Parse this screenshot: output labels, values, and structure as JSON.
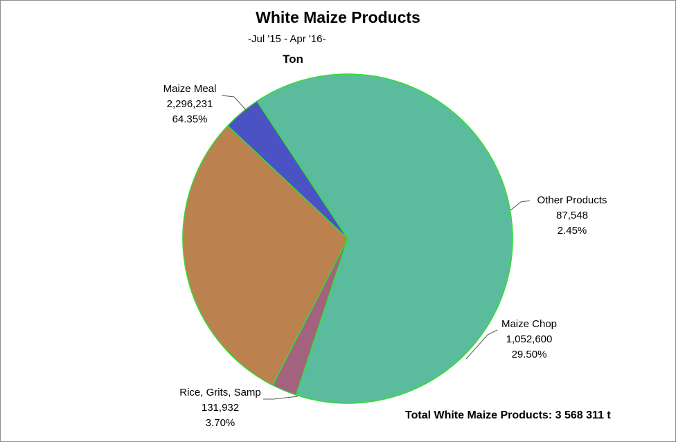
{
  "chart_data": {
    "type": "pie",
    "title": "White Maize Products",
    "subtitle": "-Jul '15 -  Apr '16-",
    "unit": "Ton",
    "slices": [
      {
        "name": "Maize Meal",
        "value": 2296231,
        "value_label": "2,296,231",
        "percent_label": "64.35%",
        "percent": 64.35,
        "color": "#5bbc9d"
      },
      {
        "name": "Other Products",
        "value": 87548,
        "value_label": "87,548",
        "percent_label": "2.45%",
        "percent": 2.45,
        "color": "#a3637f"
      },
      {
        "name": "Maize Chop",
        "value": 1052600,
        "value_label": "1,052,600",
        "percent_label": "29.50%",
        "percent": 29.5,
        "color": "#bb814f"
      },
      {
        "name": "Rice, Grits, Samp",
        "value": 131932,
        "value_label": "131,932",
        "percent_label": "3.70%",
        "percent": 3.7,
        "color": "#4b52c4"
      }
    ],
    "slice_border_color": "#33dd33",
    "legend": "none",
    "total_text": "Total White Maize Products: 3 568 311 t"
  }
}
